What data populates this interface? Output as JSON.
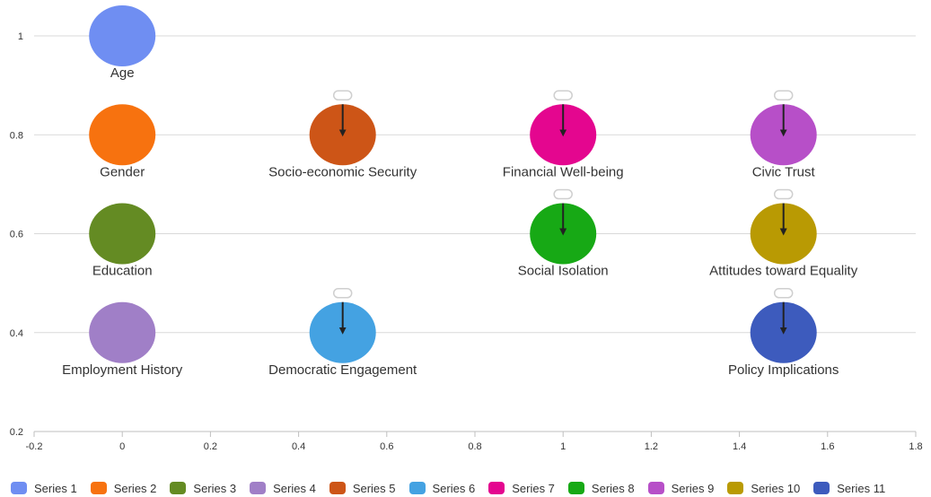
{
  "chart_data": {
    "type": "scatter",
    "title": "",
    "xlabel": "",
    "ylabel": "",
    "xlim": [
      -0.2,
      1.8
    ],
    "ylim": [
      0.2,
      1
    ],
    "x_ticks": [
      "-0.2",
      "0",
      "0.2",
      "0.4",
      "0.6",
      "0.8",
      "1",
      "1.2",
      "1.4",
      "1.6",
      "1.8"
    ],
    "y_ticks": [
      "0.2",
      "0.4",
      "0.6",
      "0.8",
      "1"
    ],
    "grid": "horizontal",
    "legend_position": "bottom",
    "nodes": [
      {
        "label": "Age",
        "x": 0,
        "y": 1,
        "color": "#6f8ef2"
      },
      {
        "label": "Gender",
        "x": 0,
        "y": 0.8,
        "color": "#f7720f"
      },
      {
        "label": "Education",
        "x": 0,
        "y": 0.6,
        "color": "#648b23"
      },
      {
        "label": "Employment History",
        "x": 0,
        "y": 0.4,
        "color": "#a07fc7"
      },
      {
        "label": "Socio-economic Security",
        "x": 0.5,
        "y": 0.8,
        "color": "#cd5517",
        "arrow": true
      },
      {
        "label": "Democratic Engagement",
        "x": 0.5,
        "y": 0.4,
        "color": "#44a2e2",
        "arrow": true
      },
      {
        "label": "Financial Well-being",
        "x": 1,
        "y": 0.8,
        "color": "#e4068f",
        "arrow": true
      },
      {
        "label": "Social Isolation",
        "x": 1,
        "y": 0.6,
        "color": "#17a915",
        "arrow": true
      },
      {
        "label": "Civic Trust",
        "x": 1.5,
        "y": 0.8,
        "color": "#b74fc8",
        "arrow": true
      },
      {
        "label": "Attitudes toward Equality",
        "x": 1.5,
        "y": 0.6,
        "color": "#b99a03",
        "arrow": true
      },
      {
        "label": "Policy Implications",
        "x": 1.5,
        "y": 0.4,
        "color": "#3d5bbd",
        "arrow": true
      }
    ],
    "series": [
      {
        "name": "Series 1",
        "color": "#6f8ef2"
      },
      {
        "name": "Series 2",
        "color": "#f7720f"
      },
      {
        "name": "Series 3",
        "color": "#648b23"
      },
      {
        "name": "Series 4",
        "color": "#a07fc7"
      },
      {
        "name": "Series 5",
        "color": "#cd5517"
      },
      {
        "name": "Series 6",
        "color": "#44a2e2"
      },
      {
        "name": "Series 7",
        "color": "#e4068f"
      },
      {
        "name": "Series 8",
        "color": "#17a915"
      },
      {
        "name": "Series 9",
        "color": "#b74fc8"
      },
      {
        "name": "Series 10",
        "color": "#b99a03"
      },
      {
        "name": "Series 11",
        "color": "#3d5bbd"
      }
    ]
  }
}
